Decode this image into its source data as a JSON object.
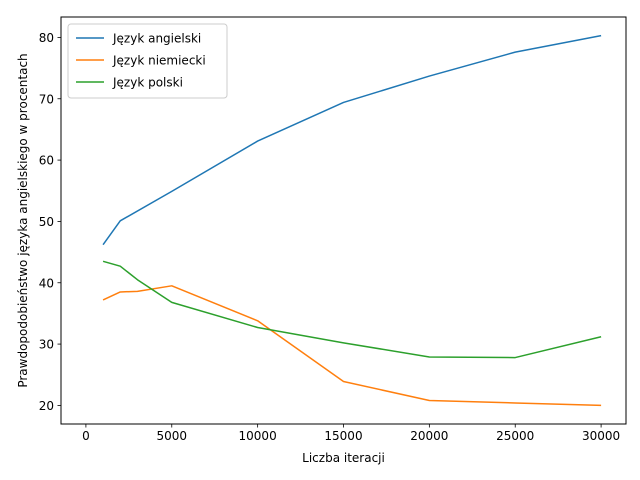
{
  "chart_data": {
    "type": "line",
    "title": "",
    "xlabel": "Liczba iteracji",
    "ylabel": "Prawdopodobieństwo języka angielskiego w procentach",
    "xlim": [
      -1450,
      31450
    ],
    "ylim": [
      16.97,
      83.33
    ],
    "x_ticks": [
      0,
      5000,
      10000,
      15000,
      20000,
      25000,
      30000
    ],
    "y_ticks": [
      20,
      30,
      40,
      50,
      60,
      70,
      80
    ],
    "grid": false,
    "legend_position": "top-left",
    "series": [
      {
        "name": "Język angielski",
        "color": "#1f77b4",
        "x": [
          1000,
          2000,
          5000,
          10000,
          15000,
          20000,
          25000,
          30000
        ],
        "y": [
          46.2,
          50.1,
          54.9,
          63.1,
          69.4,
          73.7,
          77.6,
          80.3
        ]
      },
      {
        "name": "Język niemiecki",
        "color": "#ff7f0e",
        "x": [
          1000,
          2000,
          3000,
          5000,
          10000,
          15000,
          20000,
          25000,
          30000
        ],
        "y": [
          37.2,
          38.5,
          38.6,
          39.5,
          33.8,
          23.9,
          20.8,
          20.4,
          20.0
        ]
      },
      {
        "name": "Język polski",
        "color": "#2ca02c",
        "x": [
          1000,
          2000,
          3000,
          5000,
          10000,
          15000,
          20000,
          25000,
          30000
        ],
        "y": [
          43.5,
          42.7,
          40.5,
          36.8,
          32.7,
          30.2,
          27.9,
          27.8,
          31.2
        ]
      }
    ]
  }
}
